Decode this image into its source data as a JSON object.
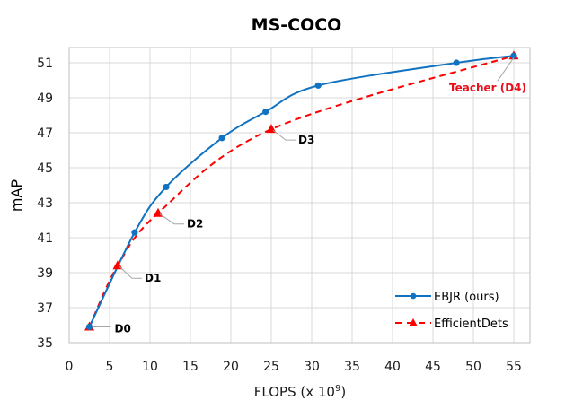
{
  "chart_data": {
    "type": "line",
    "title": "MS-COCO",
    "xlabel": "FLOPS (x 10",
    "xlabel_superscript": "9",
    "xlabel_suffix": ")",
    "ylabel": "mAP",
    "xlim": [
      0,
      57
    ],
    "ylim": [
      35,
      52
    ],
    "xticks": [
      0,
      5,
      10,
      15,
      20,
      25,
      30,
      35,
      40,
      45,
      50,
      55
    ],
    "yticks": [
      35,
      37,
      39,
      41,
      43,
      45,
      47,
      49,
      51
    ],
    "grid": true,
    "legend_position": "bottom-right",
    "series": [
      {
        "name": "EBJR (ours)",
        "color": "#1072c0",
        "style": "solid",
        "marker": "circle",
        "x": [
          2.5,
          8.1,
          12.0,
          18.9,
          24.3,
          30.8,
          47.9,
          55.0
        ],
        "y": [
          35.9,
          41.3,
          43.9,
          46.7,
          48.2,
          49.7,
          51.0,
          51.4
        ]
      },
      {
        "name": "EfficientDets",
        "color": "#ff0000",
        "style": "dashed",
        "marker": "triangle",
        "x": [
          2.5,
          6.0,
          11.0,
          25.0,
          55.0
        ],
        "y": [
          35.9,
          39.4,
          42.4,
          47.2,
          51.4
        ]
      }
    ],
    "annotations": [
      {
        "text": "D0",
        "x": 2.5,
        "y": 35.9,
        "color": "#000000"
      },
      {
        "text": "D1",
        "x": 6.0,
        "y": 39.4,
        "color": "#000000"
      },
      {
        "text": "D2",
        "x": 11.0,
        "y": 42.4,
        "color": "#000000"
      },
      {
        "text": "D3",
        "x": 25.0,
        "y": 47.2,
        "color": "#000000"
      },
      {
        "text": "Teacher (D4)",
        "x": 55.0,
        "y": 51.4,
        "color": "#e8101c"
      }
    ]
  }
}
